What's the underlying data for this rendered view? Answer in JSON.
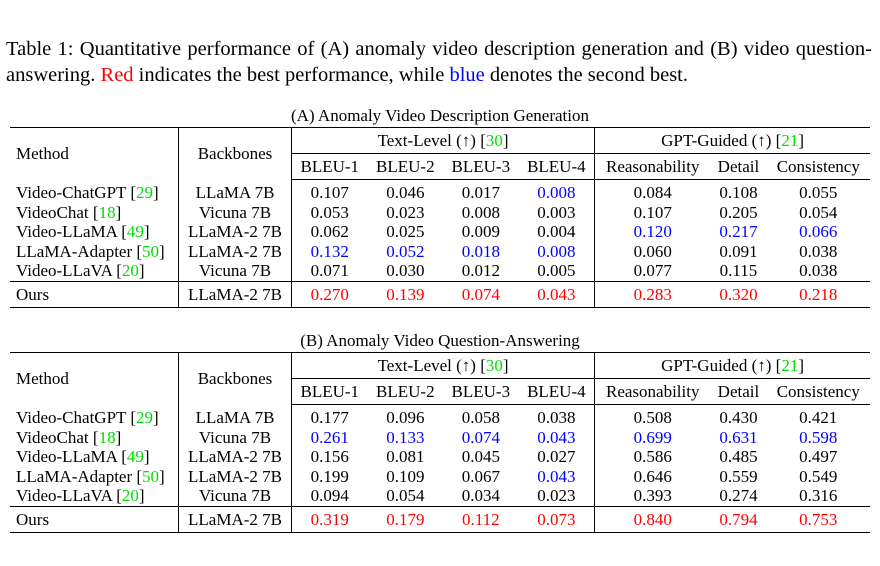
{
  "caption": {
    "prefix": "Table 1:",
    "text1": " Quantitative performance of (A) anomaly video description generation and (B) video question-answering. ",
    "red_word": "Red",
    "text2": " indicates the best performance, while ",
    "blue_word": "blue",
    "text3": " denotes the second best."
  },
  "colors": {
    "best": "#ff0000",
    "second": "#0000ff",
    "citation": "#00dd00"
  },
  "headers": {
    "method": "Method",
    "backbones": "Backbones",
    "text_level": "Text-Level (↑) [",
    "text_level_ref": "30",
    "gpt_guided": "GPT-Guided (↑) [",
    "gpt_guided_ref": "21",
    "close_bracket": "]",
    "bleu1": "BLEU-1",
    "bleu2": "BLEU-2",
    "bleu3": "BLEU-3",
    "bleu4": "BLEU-4",
    "reasonability": "Reasonability",
    "detail": "Detail",
    "consistency": "Consistency"
  },
  "tableA": {
    "title": "(A) Anomaly Video Description Generation",
    "rows": [
      {
        "method": "Video-ChatGPT",
        "ref": "29",
        "backbone": "LLaMA 7B",
        "vals": [
          "0.107",
          "0.046",
          "0.017",
          "0.008",
          "0.084",
          "0.108",
          "0.055"
        ],
        "marks": [
          "",
          "",
          "",
          "s",
          "",
          "",
          ""
        ]
      },
      {
        "method": "VideoChat",
        "ref": "18",
        "backbone": "Vicuna 7B",
        "vals": [
          "0.053",
          "0.023",
          "0.008",
          "0.003",
          "0.107",
          "0.205",
          "0.054"
        ],
        "marks": [
          "",
          "",
          "",
          "",
          "",
          "",
          ""
        ]
      },
      {
        "method": "Video-LLaMA",
        "ref": "49",
        "backbone": "LLaMA-2 7B",
        "vals": [
          "0.062",
          "0.025",
          "0.009",
          "0.004",
          "0.120",
          "0.217",
          "0.066"
        ],
        "marks": [
          "",
          "",
          "",
          "",
          "s",
          "s",
          "s"
        ]
      },
      {
        "method": "LLaMA-Adapter",
        "ref": "50",
        "backbone": "LLaMA-2 7B",
        "vals": [
          "0.132",
          "0.052",
          "0.018",
          "0.008",
          "0.060",
          "0.091",
          "0.038"
        ],
        "marks": [
          "s",
          "s",
          "s",
          "s",
          "",
          "",
          ""
        ]
      },
      {
        "method": "Video-LLaVA",
        "ref": "20",
        "backbone": "Vicuna 7B",
        "vals": [
          "0.071",
          "0.030",
          "0.012",
          "0.005",
          "0.077",
          "0.115",
          "0.038"
        ],
        "marks": [
          "",
          "",
          "",
          "",
          "",
          "",
          ""
        ]
      }
    ],
    "ours": {
      "method": "Ours",
      "backbone": "LLaMA-2 7B",
      "vals": [
        "0.270",
        "0.139",
        "0.074",
        "0.043",
        "0.283",
        "0.320",
        "0.218"
      ],
      "marks": [
        "b",
        "b",
        "b",
        "b",
        "b",
        "b",
        "b"
      ]
    }
  },
  "tableB": {
    "title": "(B) Anomaly Video Question-Answering",
    "rows": [
      {
        "method": "Video-ChatGPT",
        "ref": "29",
        "backbone": "LLaMA 7B",
        "vals": [
          "0.177",
          "0.096",
          "0.058",
          "0.038",
          "0.508",
          "0.430",
          "0.421"
        ],
        "marks": [
          "",
          "",
          "",
          "",
          "",
          "",
          ""
        ]
      },
      {
        "method": "VideoChat",
        "ref": "18",
        "backbone": "Vicuna 7B",
        "vals": [
          "0.261",
          "0.133",
          "0.074",
          "0.043",
          "0.699",
          "0.631",
          "0.598"
        ],
        "marks": [
          "s",
          "s",
          "s",
          "s",
          "s",
          "s",
          "s"
        ]
      },
      {
        "method": "Video-LLaMA",
        "ref": "49",
        "backbone": "LLaMA-2 7B",
        "vals": [
          "0.156",
          "0.081",
          "0.045",
          "0.027",
          "0.586",
          "0.485",
          "0.497"
        ],
        "marks": [
          "",
          "",
          "",
          "",
          "",
          "",
          ""
        ]
      },
      {
        "method": "LLaMA-Adapter",
        "ref": "50",
        "backbone": "LLaMA-2 7B",
        "vals": [
          "0.199",
          "0.109",
          "0.067",
          "0.043",
          "0.646",
          "0.559",
          "0.549"
        ],
        "marks": [
          "",
          "",
          "",
          "s",
          "",
          "",
          ""
        ]
      },
      {
        "method": "Video-LLaVA",
        "ref": "20",
        "backbone": "Vicuna 7B",
        "vals": [
          "0.094",
          "0.054",
          "0.034",
          "0.023",
          "0.393",
          "0.274",
          "0.316"
        ],
        "marks": [
          "",
          "",
          "",
          "",
          "",
          "",
          ""
        ]
      }
    ],
    "ours": {
      "method": "Ours",
      "backbone": "LLaMA-2 7B",
      "vals": [
        "0.319",
        "0.179",
        "0.112",
        "0.073",
        "0.840",
        "0.794",
        "0.753"
      ],
      "marks": [
        "b",
        "b",
        "b",
        "b",
        "b",
        "b",
        "b"
      ]
    }
  }
}
